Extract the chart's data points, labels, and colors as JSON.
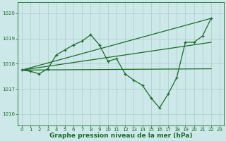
{
  "bg_color": "#cde8e8",
  "grid_color": "#aacccc",
  "line_color": "#1a6b2a",
  "marker_color": "#1a6b2a",
  "title": "Graphe pression niveau de la mer (hPa)",
  "title_fontsize": 6.5,
  "ylim": [
    1015.55,
    1020.45
  ],
  "xlim": [
    -0.5,
    23.5
  ],
  "yticks": [
    1016,
    1017,
    1018,
    1019,
    1020
  ],
  "xticks": [
    0,
    1,
    2,
    3,
    4,
    5,
    6,
    7,
    8,
    9,
    10,
    11,
    12,
    13,
    14,
    15,
    16,
    17,
    18,
    19,
    20,
    21,
    22,
    23
  ],
  "series_x": [
    0,
    1,
    2,
    3,
    4,
    5,
    6,
    7,
    8,
    9,
    10,
    11,
    12,
    13,
    14,
    15,
    16,
    17,
    18,
    19,
    20,
    21,
    22
  ],
  "series_y": [
    1017.75,
    1017.7,
    1017.6,
    1017.8,
    1018.35,
    1018.55,
    1018.75,
    1018.9,
    1019.15,
    1018.75,
    1018.1,
    1018.2,
    1017.6,
    1017.35,
    1017.15,
    1016.65,
    1016.25,
    1016.8,
    1017.45,
    1018.85,
    1018.85,
    1019.1,
    1019.8
  ],
  "trend1_x": [
    0,
    22
  ],
  "trend1_y": [
    1017.75,
    1019.8
  ],
  "trend2_x": [
    0,
    22
  ],
  "trend2_y": [
    1017.75,
    1018.85
  ],
  "trend3_x": [
    0,
    22
  ],
  "trend3_y": [
    1017.75,
    1017.8
  ]
}
